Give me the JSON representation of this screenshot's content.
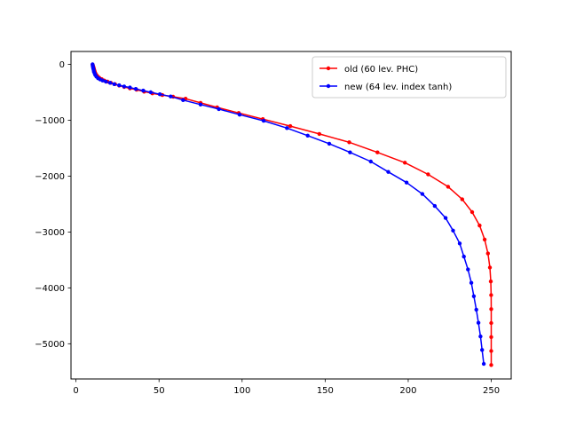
{
  "chart_data": {
    "type": "line",
    "title": "",
    "xlabel": "",
    "ylabel": "",
    "xlim": [
      -3,
      262
    ],
    "ylim": [
      -5630,
      230
    ],
    "grid": false,
    "legend_position": "top-right",
    "x_ticks": [
      0,
      50,
      100,
      150,
      200,
      250
    ],
    "x_tick_labels": [
      "0",
      "50",
      "100",
      "150",
      "200",
      "250"
    ],
    "y_ticks": [
      0,
      -1000,
      -2000,
      -3000,
      -4000,
      -5000
    ],
    "y_tick_labels": [
      "0",
      "−1000",
      "−2000",
      "−3000",
      "−4000",
      "−5000"
    ],
    "series": [
      {
        "name": "old (60 lev. PHC)",
        "color": "#ff0000",
        "marker": "circle",
        "points": [
          [
            10,
            -5
          ],
          [
            10.2,
            -20
          ],
          [
            10.4,
            -40
          ],
          [
            10.6,
            -60
          ],
          [
            10.8,
            -80
          ],
          [
            11,
            -100
          ],
          [
            11.3,
            -130
          ],
          [
            11.7,
            -160
          ],
          [
            12.3,
            -190
          ],
          [
            13,
            -215
          ],
          [
            14,
            -240
          ],
          [
            15.5,
            -265
          ],
          [
            17,
            -290
          ],
          [
            19,
            -310
          ],
          [
            21,
            -330
          ],
          [
            23.5,
            -355
          ],
          [
            26,
            -380
          ],
          [
            29,
            -405
          ],
          [
            32.5,
            -430
          ],
          [
            36.5,
            -455
          ],
          [
            41,
            -490
          ],
          [
            46,
            -520
          ],
          [
            52,
            -550
          ],
          [
            58.5,
            -580
          ],
          [
            66,
            -615
          ],
          [
            75,
            -690
          ],
          [
            85,
            -770
          ],
          [
            98,
            -870
          ],
          [
            112.5,
            -980
          ],
          [
            129,
            -1105
          ],
          [
            146.5,
            -1245
          ],
          [
            164.5,
            -1395
          ],
          [
            181.5,
            -1575
          ],
          [
            198,
            -1760
          ],
          [
            212,
            -1970
          ],
          [
            224,
            -2190
          ],
          [
            232.5,
            -2415
          ],
          [
            238.5,
            -2645
          ],
          [
            243,
            -2885
          ],
          [
            246,
            -3135
          ],
          [
            248,
            -3385
          ],
          [
            249.2,
            -3635
          ],
          [
            249.7,
            -3885
          ],
          [
            249.9,
            -4130
          ],
          [
            250,
            -4380
          ],
          [
            250,
            -4630
          ],
          [
            250,
            -4880
          ],
          [
            250,
            -5130
          ],
          [
            250,
            -5380
          ]
        ]
      },
      {
        "name": "new (64 lev. index tanh)",
        "color": "#0000ff",
        "marker": "circle",
        "points": [
          [
            10,
            0
          ],
          [
            10.1,
            -25
          ],
          [
            10.2,
            -50
          ],
          [
            10.4,
            -75
          ],
          [
            10.6,
            -100
          ],
          [
            10.8,
            -130
          ],
          [
            11.2,
            -160
          ],
          [
            11.6,
            -190
          ],
          [
            12.3,
            -220
          ],
          [
            13.3,
            -250
          ],
          [
            14.5,
            -270
          ],
          [
            16,
            -290
          ],
          [
            18,
            -310
          ],
          [
            20.5,
            -330
          ],
          [
            23,
            -355
          ],
          [
            26,
            -375
          ],
          [
            29,
            -395
          ],
          [
            32.5,
            -415
          ],
          [
            36,
            -440
          ],
          [
            40.5,
            -470
          ],
          [
            45,
            -500
          ],
          [
            50.5,
            -535
          ],
          [
            57,
            -575
          ],
          [
            64.5,
            -640
          ],
          [
            75,
            -720
          ],
          [
            86,
            -800
          ],
          [
            98.5,
            -900
          ],
          [
            113,
            -1010
          ],
          [
            127,
            -1140
          ],
          [
            139.5,
            -1275
          ],
          [
            152.5,
            -1420
          ],
          [
            165,
            -1575
          ],
          [
            177.5,
            -1740
          ],
          [
            188,
            -1925
          ],
          [
            199,
            -2115
          ],
          [
            208.5,
            -2320
          ],
          [
            216,
            -2535
          ],
          [
            222.5,
            -2750
          ],
          [
            227,
            -2975
          ],
          [
            231,
            -3205
          ],
          [
            233.5,
            -3440
          ],
          [
            236,
            -3670
          ],
          [
            238,
            -3910
          ],
          [
            239.5,
            -4150
          ],
          [
            241,
            -4390
          ],
          [
            242.3,
            -4625
          ],
          [
            243.5,
            -4870
          ],
          [
            244.5,
            -5110
          ],
          [
            245.5,
            -5360
          ]
        ]
      }
    ]
  }
}
